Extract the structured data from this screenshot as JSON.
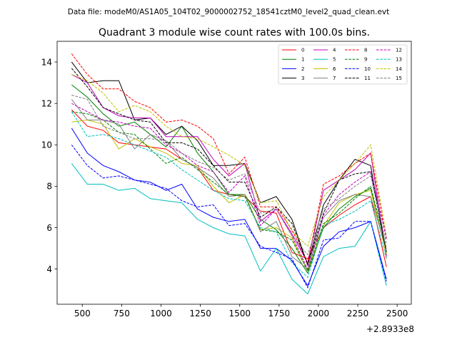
{
  "chart_data": {
    "type": "line",
    "suptitle": "Data file: modeM0/AS1A05_104T02_9000002752_18541cztM0_level2_quad_clean.evt",
    "title": "Quadrant 3 module wise count rates with 100.0s bins.",
    "xlabel": "",
    "ylabel": "",
    "x_offset_label": "+2.8933e8",
    "xlim": [
      340,
      2590
    ],
    "ylim": [
      2.3,
      15.0
    ],
    "xticks": [
      500,
      750,
      1000,
      1250,
      1500,
      1750,
      2000,
      2250,
      2500
    ],
    "yticks": [
      4,
      6,
      8,
      10,
      12,
      14
    ],
    "x": [
      432,
      532,
      632,
      732,
      832,
      932,
      1032,
      1132,
      1232,
      1332,
      1432,
      1532,
      1632,
      1732,
      1832,
      1932,
      2032,
      2132,
      2232,
      2332,
      2432
    ],
    "series": [
      {
        "name": "0",
        "color": "#ff0000",
        "dash": "solid",
        "values": [
          11.7,
          10.9,
          10.7,
          10.1,
          10.0,
          9.9,
          9.8,
          9.3,
          8.9,
          7.8,
          7.6,
          7.5,
          6.8,
          6.7,
          4.8,
          4.5,
          6.0,
          6.6,
          7.1,
          7.5,
          4.1
        ]
      },
      {
        "name": "1",
        "color": "#008000",
        "dash": "solid",
        "values": [
          12.9,
          12.3,
          11.5,
          10.9,
          11.1,
          10.5,
          9.9,
          10.9,
          9.6,
          8.7,
          7.6,
          7.6,
          6.4,
          5.9,
          5.0,
          3.8,
          6.0,
          6.9,
          7.5,
          7.9,
          4.7
        ]
      },
      {
        "name": "2",
        "color": "#0000ff",
        "dash": "solid",
        "values": [
          10.8,
          9.6,
          9.0,
          8.7,
          8.3,
          8.2,
          7.8,
          8.1,
          6.9,
          6.5,
          6.3,
          6.4,
          5.0,
          5.0,
          4.4,
          3.2,
          5.1,
          5.8,
          6.0,
          6.3,
          3.5
        ]
      },
      {
        "name": "3",
        "color": "#000000",
        "dash": "solid",
        "values": [
          14.0,
          13.0,
          13.1,
          13.1,
          11.2,
          11.3,
          10.5,
          10.9,
          10.2,
          9.0,
          9.0,
          9.1,
          7.2,
          7.5,
          6.4,
          4.2,
          7.1,
          8.3,
          9.3,
          9.0,
          4.6
        ]
      },
      {
        "name": "4",
        "color": "#bf00bf",
        "dash": "solid",
        "values": [
          13.4,
          13.0,
          11.8,
          11.4,
          11.3,
          11.3,
          10.4,
          10.4,
          10.4,
          9.3,
          8.5,
          9.1,
          6.3,
          6.9,
          5.7,
          4.3,
          7.8,
          8.3,
          8.8,
          9.6,
          4.6
        ]
      },
      {
        "name": "5",
        "color": "#00bfbf",
        "dash": "solid",
        "values": [
          9.1,
          8.1,
          8.1,
          7.8,
          7.9,
          7.4,
          7.3,
          7.2,
          6.4,
          6.0,
          5.7,
          5.6,
          3.9,
          5.0,
          3.5,
          2.8,
          4.6,
          5.0,
          5.1,
          6.3,
          3.2
        ]
      },
      {
        "name": "6",
        "color": "#bfbf00",
        "dash": "solid",
        "values": [
          11.1,
          11.2,
          11.0,
          9.8,
          10.3,
          9.9,
          9.6,
          9.1,
          9.0,
          8.0,
          7.2,
          7.6,
          5.9,
          6.0,
          5.5,
          3.9,
          6.1,
          7.2,
          7.6,
          7.8,
          4.7
        ]
      },
      {
        "name": "7",
        "color": "#808080",
        "dash": "solid",
        "values": [
          12.2,
          11.2,
          11.2,
          11.0,
          9.8,
          10.5,
          10.2,
          9.3,
          8.9,
          8.4,
          7.5,
          7.6,
          5.8,
          6.3,
          4.6,
          4.0,
          6.5,
          7.3,
          7.6,
          7.5,
          4.9
        ]
      },
      {
        "name": "8",
        "color": "#ff0000",
        "dash": "dashed",
        "values": [
          14.4,
          13.4,
          12.7,
          12.7,
          12.1,
          11.8,
          11.1,
          11.2,
          10.9,
          10.3,
          8.6,
          9.4,
          7.0,
          7.0,
          5.9,
          4.3,
          8.1,
          8.5,
          9.1,
          9.6,
          5.4
        ]
      },
      {
        "name": "9",
        "color": "#008000",
        "dash": "dashed",
        "values": [
          11.6,
          11.5,
          11.2,
          10.6,
          10.5,
          9.8,
          9.1,
          9.4,
          8.8,
          8.2,
          7.6,
          7.5,
          5.9,
          5.8,
          5.4,
          3.9,
          6.2,
          6.7,
          7.4,
          8.0,
          5.0
        ]
      },
      {
        "name": "10",
        "color": "#0000ff",
        "dash": "dashed",
        "values": [
          10.0,
          9.0,
          8.4,
          8.5,
          8.3,
          8.1,
          7.9,
          7.3,
          7.0,
          7.1,
          6.1,
          6.2,
          5.1,
          4.8,
          4.5,
          3.1,
          5.4,
          5.5,
          6.3,
          6.3,
          3.4
        ]
      },
      {
        "name": "11",
        "color": "#000000",
        "dash": "dashed",
        "values": [
          13.7,
          12.8,
          11.8,
          11.5,
          11.2,
          11.1,
          10.1,
          10.1,
          9.8,
          9.0,
          8.2,
          8.2,
          6.5,
          7.0,
          6.2,
          4.2,
          6.7,
          8.3,
          8.6,
          8.7,
          4.8
        ]
      },
      {
        "name": "12",
        "color": "#bf00bf",
        "dash": "dashed",
        "values": [
          12.0,
          11.6,
          11.2,
          11.1,
          10.9,
          10.8,
          10.0,
          9.6,
          9.0,
          8.7,
          7.7,
          8.5,
          6.1,
          6.9,
          5.6,
          4.0,
          6.6,
          7.6,
          8.2,
          8.7,
          5.5
        ]
      },
      {
        "name": "13",
        "color": "#00bfbf",
        "dash": "dashed",
        "values": [
          11.6,
          10.4,
          10.5,
          10.3,
          10.0,
          9.7,
          9.4,
          8.8,
          8.3,
          7.8,
          7.4,
          7.3,
          6.0,
          5.8,
          4.3,
          3.6,
          6.1,
          6.4,
          6.8,
          7.3,
          4.5
        ]
      },
      {
        "name": "14",
        "color": "#bfbf00",
        "dash": "dashed",
        "values": [
          13.4,
          13.1,
          12.5,
          11.6,
          11.9,
          11.6,
          10.9,
          10.4,
          10.3,
          9.9,
          9.5,
          9.0,
          7.2,
          7.3,
          5.8,
          5.1,
          7.5,
          8.3,
          9.1,
          10.0,
          5.6
        ]
      },
      {
        "name": "15",
        "color": "#808080",
        "dash": "dashed",
        "values": [
          12.4,
          12.2,
          10.9,
          10.6,
          10.3,
          10.3,
          10.2,
          9.6,
          9.2,
          8.9,
          8.3,
          8.6,
          6.7,
          6.9,
          5.6,
          4.7,
          6.9,
          7.4,
          8.0,
          8.5,
          5.2
        ]
      }
    ]
  }
}
